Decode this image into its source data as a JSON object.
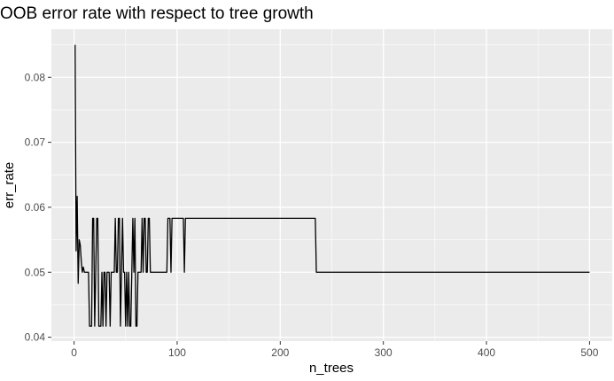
{
  "chart_data": {
    "type": "line",
    "title": "OOB error rate with respect to tree growth",
    "xlabel": "n_trees",
    "ylabel": "err_rate",
    "xlim": [
      -22,
      522
    ],
    "ylim": [
      0.0394,
      0.0874
    ],
    "x_ticks": [
      0,
      100,
      200,
      300,
      400,
      500
    ],
    "x_tick_labels": [
      "0",
      "100",
      "200",
      "300",
      "400",
      "500"
    ],
    "y_ticks": [
      0.04,
      0.05,
      0.06,
      0.07,
      0.08
    ],
    "y_tick_labels": [
      "0.04",
      "0.05",
      "0.06",
      "0.07",
      "0.08"
    ],
    "grid": true,
    "colors": {
      "panel": "#ebebeb",
      "grid": "#ffffff",
      "line": "#000000",
      "tick_label": "#4d4d4d"
    },
    "series": [
      {
        "x": [
          1,
          2,
          3,
          4,
          5,
          6,
          7,
          8,
          9,
          10,
          11,
          12,
          13,
          14,
          15,
          16,
          17,
          18,
          19,
          20,
          21,
          22,
          23,
          24,
          25,
          26,
          27,
          28,
          29,
          30,
          31,
          32,
          33,
          34,
          35,
          36,
          37,
          38,
          39,
          40,
          41,
          42,
          43,
          44,
          45,
          46,
          47,
          48,
          49,
          50,
          51,
          52,
          53,
          54,
          55,
          56,
          57,
          58,
          59,
          60,
          61,
          62,
          63,
          64,
          65,
          66,
          67,
          68,
          69,
          70,
          71,
          72,
          73,
          74,
          75,
          76,
          77,
          78,
          79,
          80,
          85,
          90,
          91,
          92,
          93,
          94,
          95,
          100,
          105,
          106,
          107,
          108,
          109,
          110,
          120,
          150,
          200,
          234,
          235,
          236,
          300,
          400,
          500
        ],
        "y": [
          0.085,
          0.0533,
          0.0617,
          0.0483,
          0.055,
          0.0542,
          0.0517,
          0.05,
          0.0508,
          0.05,
          0.05,
          0.05,
          0.05,
          0.05,
          0.0417,
          0.0417,
          0.0417,
          0.0583,
          0.0583,
          0.0417,
          0.05,
          0.0583,
          0.0583,
          0.0417,
          0.0417,
          0.0417,
          0.05,
          0.0417,
          0.05,
          0.05,
          0.0417,
          0.05,
          0.05,
          0.05,
          0.0417,
          0.05,
          0.05,
          0.05,
          0.05,
          0.0583,
          0.05,
          0.05,
          0.0583,
          0.0583,
          0.0417,
          0.05,
          0.0583,
          0.05,
          0.05,
          0.0417,
          0.05,
          0.0417,
          0.05,
          0.0417,
          0.0417,
          0.05,
          0.0583,
          0.05,
          0.0583,
          0.0417,
          0.0417,
          0.05,
          0.05,
          0.05,
          0.05,
          0.0583,
          0.05,
          0.0583,
          0.0583,
          0.05,
          0.05,
          0.0583,
          0.0583,
          0.05,
          0.05,
          0.05,
          0.05,
          0.05,
          0.05,
          0.05,
          0.05,
          0.05,
          0.0583,
          0.0583,
          0.0583,
          0.05,
          0.0583,
          0.0583,
          0.0583,
          0.0583,
          0.05,
          0.0583,
          0.0583,
          0.0583,
          0.0583,
          0.0583,
          0.0583,
          0.0583,
          0.05,
          0.05,
          0.05,
          0.05,
          0.05
        ]
      }
    ]
  }
}
